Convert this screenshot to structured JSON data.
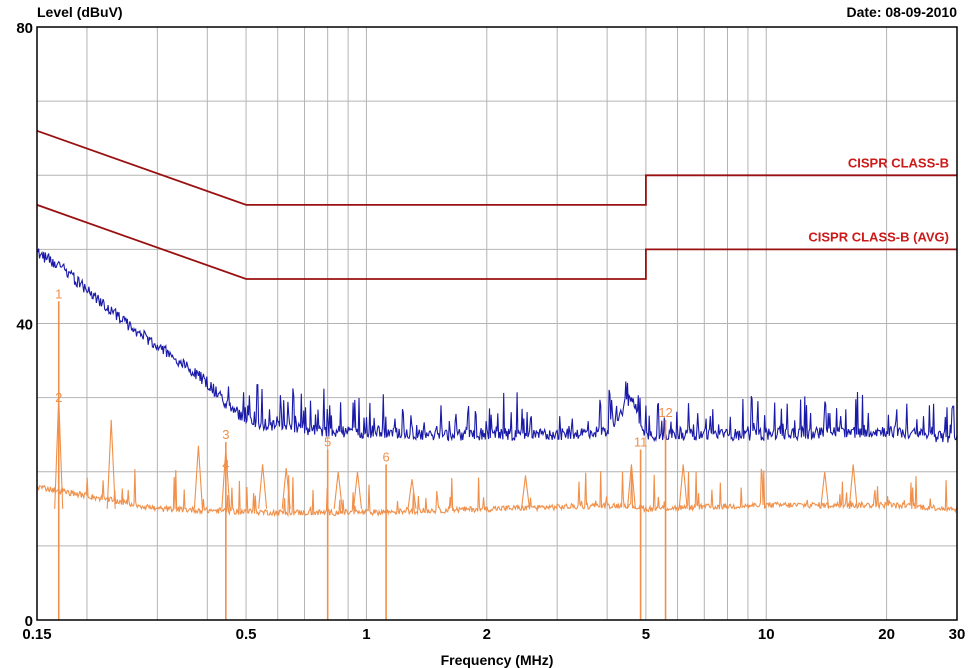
{
  "header": {
    "ylabel": "Level (dBuV)",
    "date": "Date: 08-09-2010"
  },
  "chart_data": {
    "type": "line",
    "xscale": "log",
    "xlim": [
      0.15,
      30
    ],
    "ylim": [
      0,
      80
    ],
    "grid": true,
    "xlabel": "Frequency (MHz)",
    "ylabel": "Level (dBuV)",
    "x_ticks": [
      {
        "value": 0.15,
        "label": "0.15"
      },
      {
        "value": 0.5,
        "label": "0.5"
      },
      {
        "value": 1,
        "label": "1"
      },
      {
        "value": 2,
        "label": "2"
      },
      {
        "value": 5,
        "label": "5"
      },
      {
        "value": 10,
        "label": "10"
      },
      {
        "value": 20,
        "label": "20"
      },
      {
        "value": 30,
        "label": "30"
      }
    ],
    "y_ticks": [
      {
        "value": 0,
        "label": "0"
      },
      {
        "value": 40,
        "label": "40"
      },
      {
        "value": 80,
        "label": "80"
      }
    ],
    "series": [
      {
        "name": "CISPR CLASS-B",
        "kind": "limit",
        "color": "#9a1010",
        "points": [
          [
            0.15,
            66
          ],
          [
            0.5,
            56
          ],
          [
            5,
            56
          ],
          [
            5,
            60
          ],
          [
            30,
            60
          ]
        ]
      },
      {
        "name": "CISPR CLASS-B (AVG)",
        "kind": "limit",
        "color": "#9a1010",
        "points": [
          [
            0.15,
            56
          ],
          [
            0.5,
            46
          ],
          [
            5,
            46
          ],
          [
            5,
            50
          ],
          [
            30,
            50
          ]
        ]
      },
      {
        "kind": "spectrum",
        "color": "#1a1aa8",
        "anchors": [
          [
            0.15,
            49.5
          ],
          [
            0.17,
            48
          ],
          [
            0.2,
            44.5
          ],
          [
            0.25,
            40
          ],
          [
            0.3,
            37
          ],
          [
            0.35,
            34.5
          ],
          [
            0.4,
            32
          ],
          [
            0.45,
            29
          ],
          [
            0.5,
            27
          ],
          [
            0.6,
            26
          ],
          [
            0.8,
            25.5
          ],
          [
            1.5,
            25
          ],
          [
            3,
            25
          ],
          [
            4,
            25.5
          ],
          [
            4.6,
            30
          ],
          [
            5,
            25
          ],
          [
            10,
            25
          ],
          [
            20,
            25.5
          ],
          [
            30,
            24.5
          ]
        ]
      },
      {
        "kind": "spectrum",
        "color": "#f0904a",
        "anchors": [
          [
            0.15,
            18
          ],
          [
            0.3,
            15
          ],
          [
            0.6,
            14.5
          ],
          [
            1,
            14.5
          ],
          [
            2,
            15
          ],
          [
            4.5,
            15.5
          ],
          [
            5,
            15
          ],
          [
            10,
            15.5
          ],
          [
            20,
            15.5
          ],
          [
            30,
            15
          ]
        ]
      }
    ],
    "markers": [
      {
        "label": "1",
        "x": 0.17,
        "y": 43
      },
      {
        "label": "2",
        "x": 0.17,
        "y": 29
      },
      {
        "label": "3",
        "x": 0.445,
        "y": 24
      },
      {
        "label": "4",
        "x": 0.445,
        "y": 20
      },
      {
        "label": "5",
        "x": 0.8,
        "y": 23
      },
      {
        "label": "6",
        "x": 1.12,
        "y": 21
      },
      {
        "label": "11",
        "x": 4.85,
        "y": 23
      },
      {
        "label": "12",
        "x": 5.6,
        "y": 27
      }
    ],
    "annotations": [
      {
        "text": "CISPR CLASS-B",
        "x": 30,
        "y": 60,
        "color": "#cc1a1a"
      },
      {
        "text": "CISPR CLASS-B (AVG)",
        "x": 30,
        "y": 50,
        "color": "#cc1a1a"
      }
    ]
  }
}
